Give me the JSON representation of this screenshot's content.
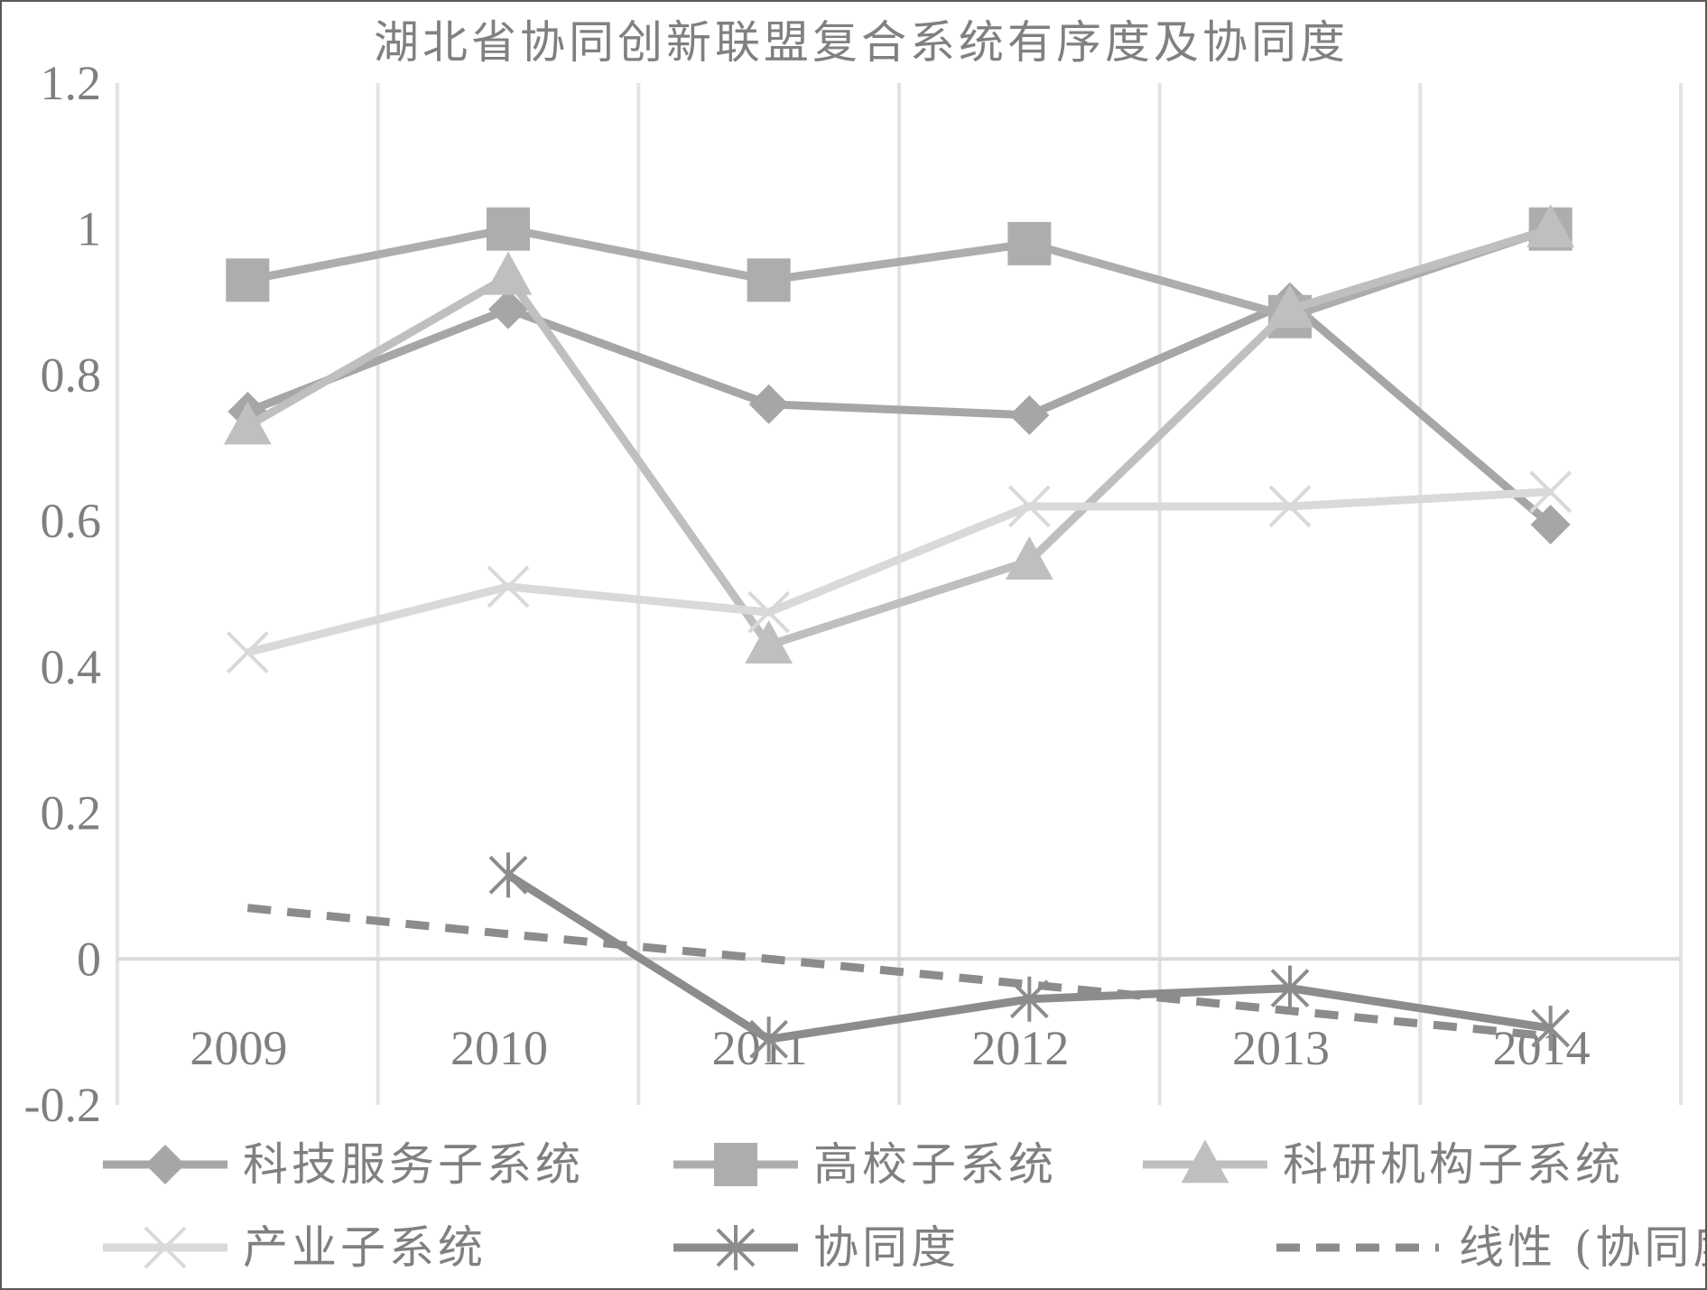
{
  "chart_data": {
    "type": "line",
    "title": "湖北省协同创新联盟复合系统有序度及协同度",
    "categories": [
      "2009",
      "2010",
      "2011",
      "2012",
      "2013",
      "2014"
    ],
    "ylim": [
      -0.2,
      1.2
    ],
    "yticks": [
      "1.2",
      "1",
      "0.8",
      "0.6",
      "0.4",
      "0.2",
      "0",
      "-0.2"
    ],
    "grid": "vertical and zero line",
    "legend_position": "bottom",
    "series": [
      {
        "name": "科技服务子系统",
        "marker": "diamond",
        "color": "#a6a6a6",
        "values": [
          0.75,
          0.89,
          0.76,
          0.745,
          0.9,
          0.595
        ]
      },
      {
        "name": "高校子系统",
        "marker": "square",
        "color": "#adadad",
        "values": [
          0.93,
          1.0,
          0.93,
          0.98,
          0.88,
          1.0
        ]
      },
      {
        "name": "科研机构子系统",
        "marker": "triangle",
        "color": "#bfbfbf",
        "values": [
          0.73,
          0.935,
          0.43,
          0.545,
          0.89,
          1.0
        ]
      },
      {
        "name": "产业子系统",
        "marker": "x",
        "color": "#d9d9d9",
        "values": [
          0.42,
          0.51,
          0.475,
          0.62,
          0.62,
          0.64
        ]
      },
      {
        "name": "协同度",
        "marker": "star",
        "color": "#8c8c8c",
        "values": [
          null,
          0.115,
          -0.11,
          -0.055,
          -0.04,
          -0.095
        ]
      },
      {
        "name": "线性 (协同度)",
        "marker": "none",
        "dashed": true,
        "color": "#8c8c8c",
        "values": [
          0.07,
          0.034,
          0.0,
          -0.035,
          -0.071,
          -0.106
        ]
      }
    ]
  }
}
